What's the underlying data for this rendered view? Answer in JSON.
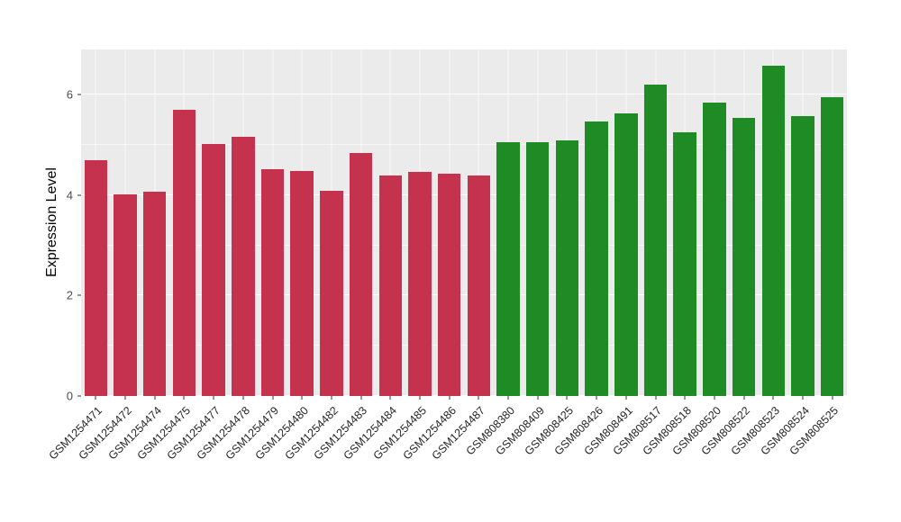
{
  "figure": {
    "background": "#FFFFFF",
    "panel_background": "#EBEBEB",
    "gridline_color": "#FFFFFF"
  },
  "chart_data": {
    "type": "bar",
    "title": "",
    "xlabel": "",
    "ylabel": "Expression Level",
    "ylim": [
      0,
      6.9
    ],
    "yticks": [
      0,
      2,
      4,
      6
    ],
    "yticks_minor": [
      1,
      3,
      5
    ],
    "grid": true,
    "legend": "none",
    "group_colors": {
      "red": "#C5324E",
      "green": "#1E8B24"
    },
    "bars": [
      {
        "label": "GSM1254471",
        "value": 4.7,
        "group": "red"
      },
      {
        "label": "GSM1254472",
        "value": 4.02,
        "group": "red"
      },
      {
        "label": "GSM1254474",
        "value": 4.06,
        "group": "red"
      },
      {
        "label": "GSM1254475",
        "value": 5.7,
        "group": "red"
      },
      {
        "label": "GSM1254477",
        "value": 5.02,
        "group": "red"
      },
      {
        "label": "GSM1254478",
        "value": 5.16,
        "group": "red"
      },
      {
        "label": "GSM1254479",
        "value": 4.52,
        "group": "red"
      },
      {
        "label": "GSM1254480",
        "value": 4.48,
        "group": "red"
      },
      {
        "label": "GSM1254482",
        "value": 4.08,
        "group": "red"
      },
      {
        "label": "GSM1254483",
        "value": 4.84,
        "group": "red"
      },
      {
        "label": "GSM1254484",
        "value": 4.4,
        "group": "red"
      },
      {
        "label": "GSM1254485",
        "value": 4.47,
        "group": "red"
      },
      {
        "label": "GSM1254486",
        "value": 4.43,
        "group": "red"
      },
      {
        "label": "GSM1254487",
        "value": 4.4,
        "group": "red"
      },
      {
        "label": "GSM808380",
        "value": 5.06,
        "group": "green"
      },
      {
        "label": "GSM808409",
        "value": 5.06,
        "group": "green"
      },
      {
        "label": "GSM808425",
        "value": 5.09,
        "group": "green"
      },
      {
        "label": "GSM808426",
        "value": 5.47,
        "group": "green"
      },
      {
        "label": "GSM808491",
        "value": 5.63,
        "group": "green"
      },
      {
        "label": "GSM808517",
        "value": 6.2,
        "group": "green"
      },
      {
        "label": "GSM808518",
        "value": 5.25,
        "group": "green"
      },
      {
        "label": "GSM808520",
        "value": 5.84,
        "group": "green"
      },
      {
        "label": "GSM808522",
        "value": 5.54,
        "group": "green"
      },
      {
        "label": "GSM808523",
        "value": 6.58,
        "group": "green"
      },
      {
        "label": "GSM808524",
        "value": 5.57,
        "group": "green"
      },
      {
        "label": "GSM808525",
        "value": 5.95,
        "group": "green"
      }
    ]
  }
}
